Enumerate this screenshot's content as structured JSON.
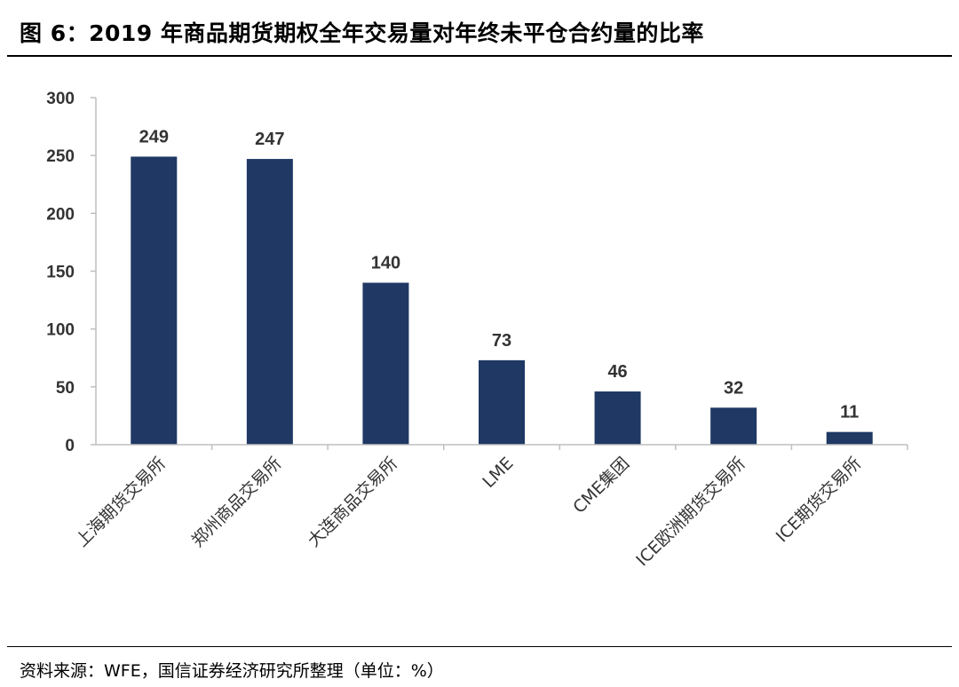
{
  "header": {
    "title": "图 6：2019 年商品期货期权全年交易量对年终未平仓合约量的比率"
  },
  "footer": {
    "source": "资料来源：WFE，国信证券经济研究所整理（单位：%）"
  },
  "colors": {
    "bar": "#1f3864",
    "axis": "#bfbfbf",
    "text": "#333333"
  },
  "chart_data": {
    "type": "bar",
    "title": "2019 年商品期货期权全年交易量对年终未平仓合约量的比率",
    "xlabel": "",
    "ylabel": "",
    "ylim": [
      0,
      300
    ],
    "yticks": [
      0,
      50,
      100,
      150,
      200,
      250,
      300
    ],
    "grid": false,
    "categories": [
      "上海期货交易所",
      "郑州商品交易所",
      "大连商品交易所",
      "LME",
      "CME集团",
      "ICE欧洲期货交易所",
      "ICE期货交易所"
    ],
    "values": [
      249,
      247,
      140,
      73,
      46,
      32,
      11
    ],
    "data_labels": true
  }
}
